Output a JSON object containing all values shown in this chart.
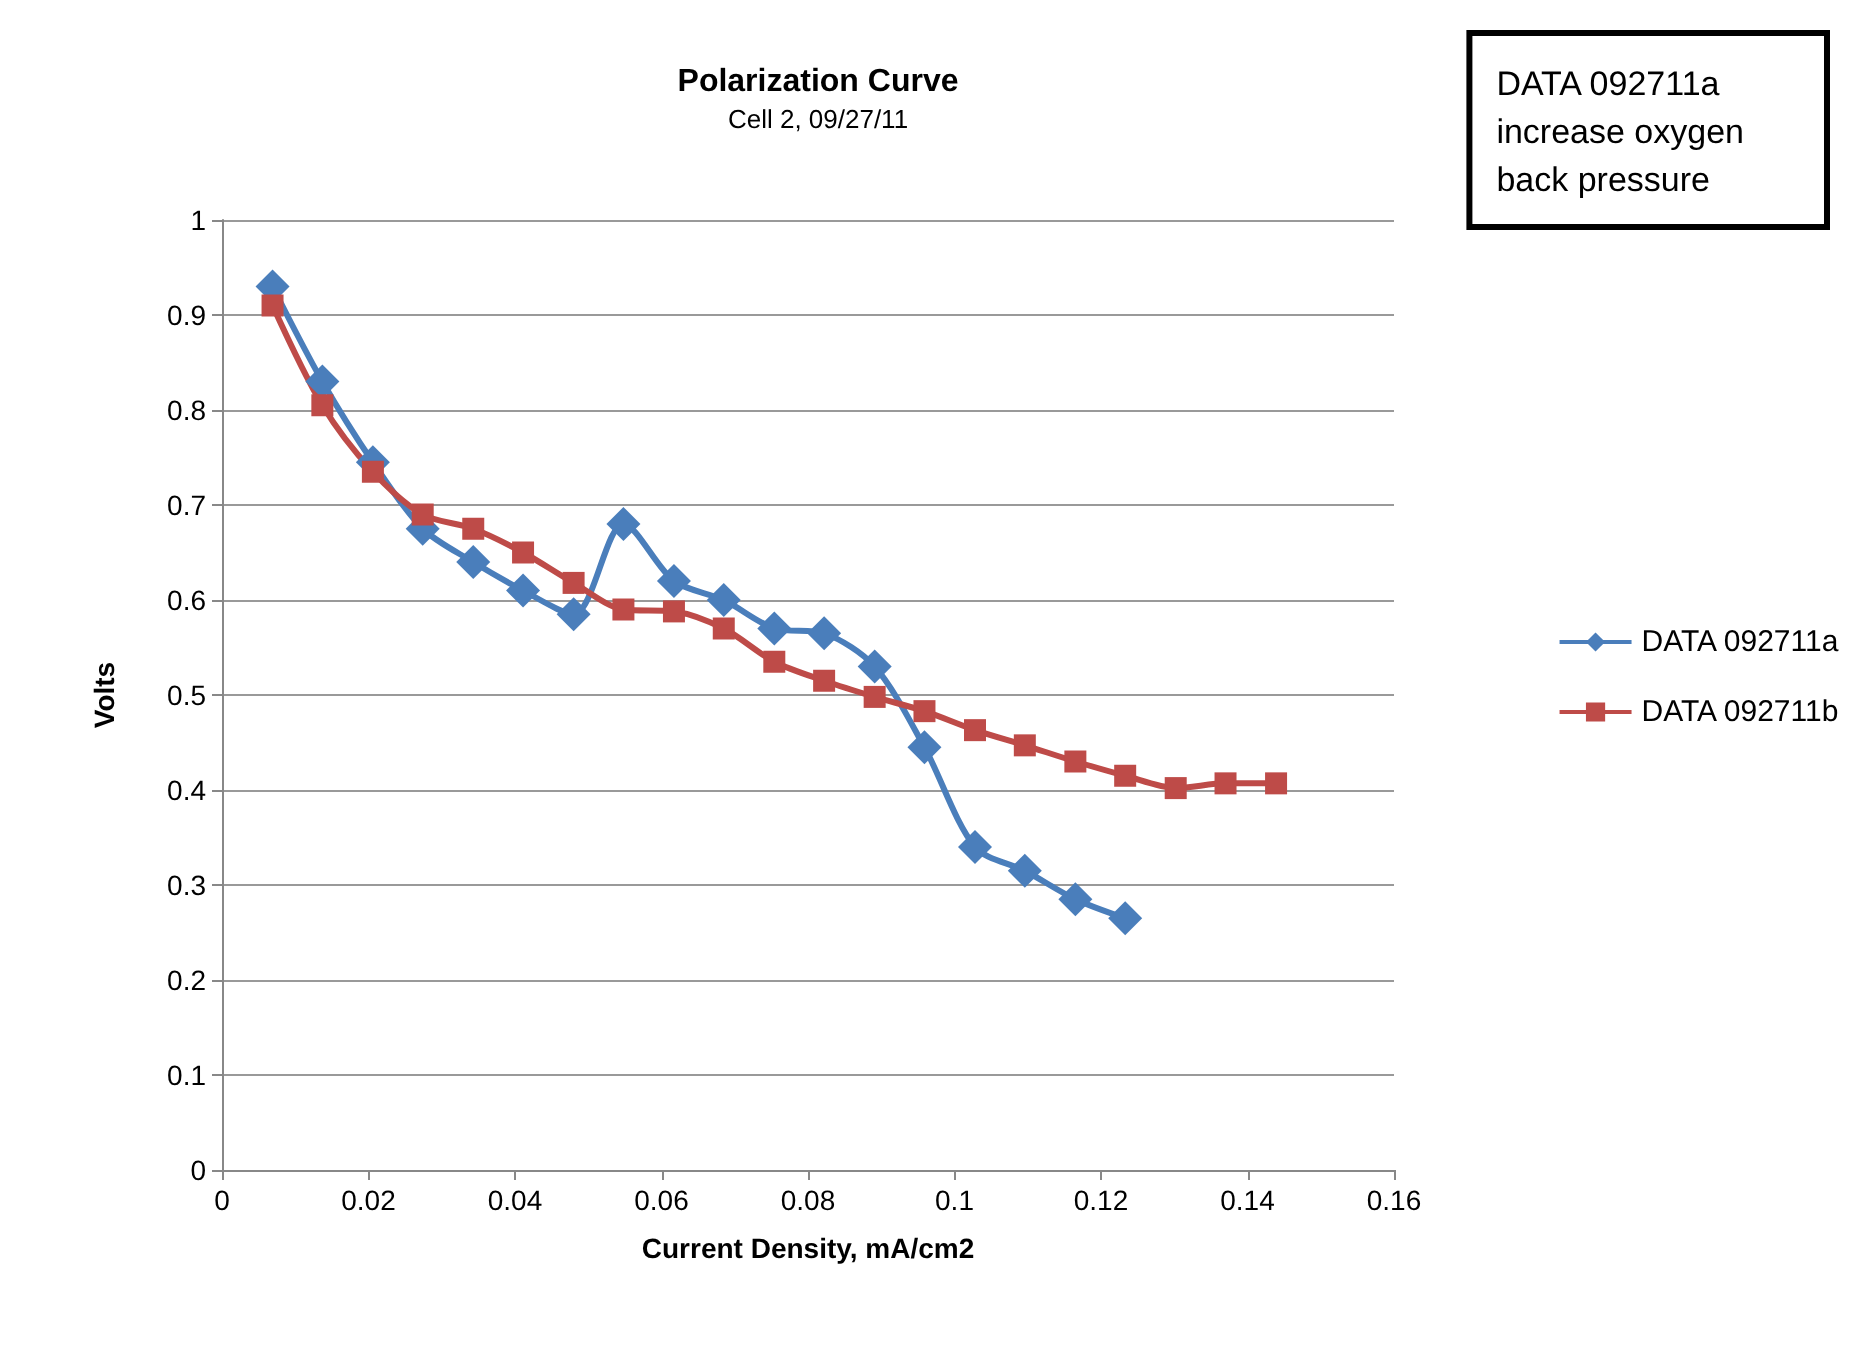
{
  "chart_data": {
    "type": "line",
    "title": "Polarization Curve",
    "subtitle": "Cell 2, 09/27/11",
    "xlabel": "Current Density, mA/cm2",
    "ylabel": "Volts",
    "annotations": [
      "DATA 092711a\nincrease oxygen\nback pressure"
    ],
    "x": [
      0.0069,
      0.0137,
      0.0206,
      0.0274,
      0.0343,
      0.0411,
      0.048,
      0.0548,
      0.0617,
      0.0685,
      0.0754,
      0.0822,
      0.0891,
      0.0959,
      0.1028,
      0.1096,
      0.1165,
      0.1233,
      0.1302,
      0.137,
      0.1439
    ],
    "series": [
      {
        "name": "DATA 092711a",
        "color": "#4a7ebb",
        "marker": "diamond",
        "values": [
          0.93,
          0.83,
          0.745,
          0.675,
          0.64,
          0.61,
          0.585,
          0.68,
          0.62,
          0.6,
          0.57,
          0.565,
          0.53,
          0.445,
          0.34,
          0.315,
          0.285,
          0.265,
          null,
          null,
          null
        ]
      },
      {
        "name": "DATA 092711b",
        "color": "#be4b48",
        "marker": "square",
        "values": [
          0.91,
          0.805,
          0.735,
          0.69,
          0.675,
          0.65,
          0.618,
          0.59,
          0.588,
          0.57,
          0.535,
          0.515,
          0.498,
          0.483,
          0.463,
          0.447,
          0.43,
          0.415,
          0.402,
          0.407,
          0.407
        ]
      }
    ],
    "xlim": [
      0,
      0.16
    ],
    "xticks": [
      0,
      0.02,
      0.04,
      0.06,
      0.08,
      0.1,
      0.12,
      0.14,
      0.16
    ],
    "ylim": [
      0,
      1
    ],
    "yticks": [
      0,
      0.1,
      0.2,
      0.3,
      0.4,
      0.5,
      0.6,
      0.7,
      0.8,
      0.9,
      1
    ],
    "grid": "y",
    "legend": "right",
    "line_style": "solid"
  }
}
